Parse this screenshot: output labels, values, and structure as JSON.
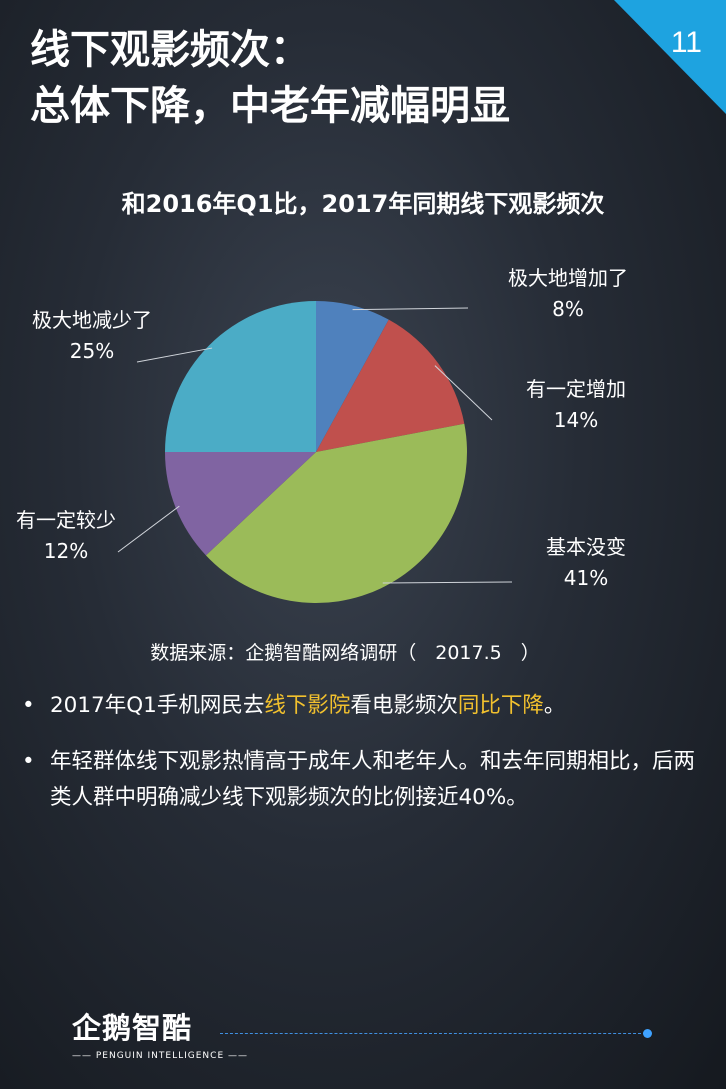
{
  "header": {
    "title_line1": "线下观影频次：",
    "title_line2": "总体下降，中老年减幅明显",
    "page_number": "11",
    "corner_color": "#1ea3e0"
  },
  "chart_data": {
    "type": "pie",
    "title": "和2016年Q1比，2017年同期线下观影频次",
    "slices": [
      {
        "label": "极大地增加了",
        "value": 8,
        "display": "8%",
        "color": "#4f81bd"
      },
      {
        "label": "有一定增加",
        "value": 14,
        "display": "14%",
        "color": "#c0504d"
      },
      {
        "label": "基本没变",
        "value": 41,
        "display": "41%",
        "color": "#9bbb59"
      },
      {
        "label": "有一定较少",
        "value": 12,
        "display": "12%",
        "color": "#8064a2"
      },
      {
        "label": "极大地减少了",
        "value": 25,
        "display": "25%",
        "color": "#4bacc6"
      }
    ]
  },
  "source": "数据来源：企鹅智酷网络调研（　2017.5　）",
  "bullets": [
    {
      "dot": "•",
      "parts": [
        {
          "text": "2017年Q1手机网民去"
        },
        {
          "text": "线下影院",
          "highlight": true
        },
        {
          "text": "看电影频次"
        },
        {
          "text": "同比下降",
          "highlight": true
        },
        {
          "text": "。"
        }
      ]
    },
    {
      "dot": "•",
      "parts": [
        {
          "text": "年轻群体线下观影热情高于成年人和老年人。和去年同期相比，后两类人群中明确减少线下观影频次的比例接近40%。"
        }
      ]
    }
  ],
  "logo": {
    "name": "企鹅智酷",
    "subtitle": "—— PENGUIN INTELLIGENCE ——"
  }
}
